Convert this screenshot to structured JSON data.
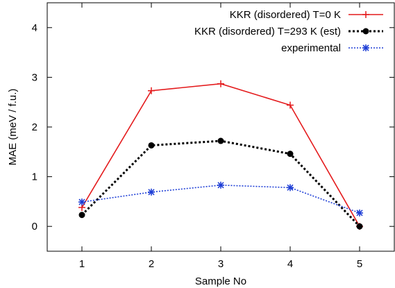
{
  "chart_data": {
    "type": "line",
    "title": "",
    "xlabel": "Sample No",
    "ylabel": "MAE (meV / f.u.)",
    "x": [
      1,
      2,
      3,
      4,
      5
    ],
    "xlim": [
      0.5,
      5.5
    ],
    "ylim": [
      -0.5,
      4.5
    ],
    "xticks": [
      1,
      2,
      3,
      4,
      5
    ],
    "yticks": [
      0,
      1,
      2,
      3,
      4
    ],
    "grid": false,
    "legend_position": "top-right",
    "series": [
      {
        "name": "KKR (disordered) T=0 K",
        "values": [
          0.38,
          2.73,
          2.87,
          2.44,
          0.0
        ],
        "color": "#e41a1c",
        "line": "solid",
        "marker": "plus"
      },
      {
        "name": "KKR (disordered) T=293 K (est)",
        "values": [
          0.23,
          1.63,
          1.72,
          1.46,
          0.0
        ],
        "color": "#000000",
        "line": "dotted",
        "marker": "circle"
      },
      {
        "name": "experimental",
        "values": [
          0.49,
          0.69,
          0.83,
          0.78,
          0.27
        ],
        "color": "#1f3fd6",
        "line": "dotted",
        "marker": "star"
      }
    ]
  }
}
